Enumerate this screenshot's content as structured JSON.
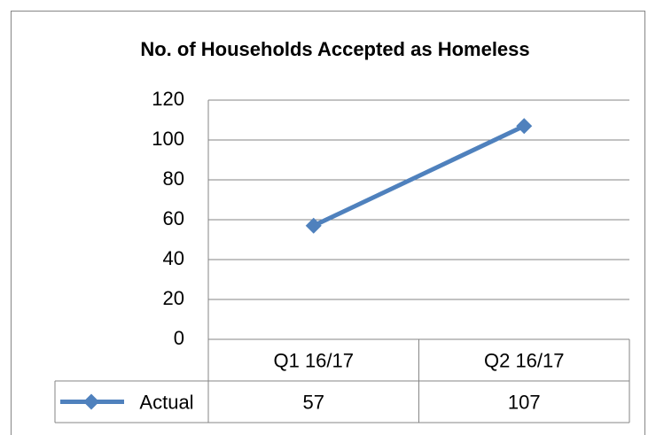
{
  "chart_data": {
    "type": "line",
    "title": "No. of Households  Accepted as Homeless",
    "categories": [
      "Q1 16/17",
      "Q2 16/17"
    ],
    "series": [
      {
        "name": "Actual",
        "color": "#4f81bd",
        "values": [
          57,
          107
        ]
      }
    ],
    "ylim": [
      0,
      120
    ],
    "yticks": [
      0,
      20,
      40,
      60,
      80,
      100,
      120
    ],
    "grid": true,
    "data_table": true
  }
}
